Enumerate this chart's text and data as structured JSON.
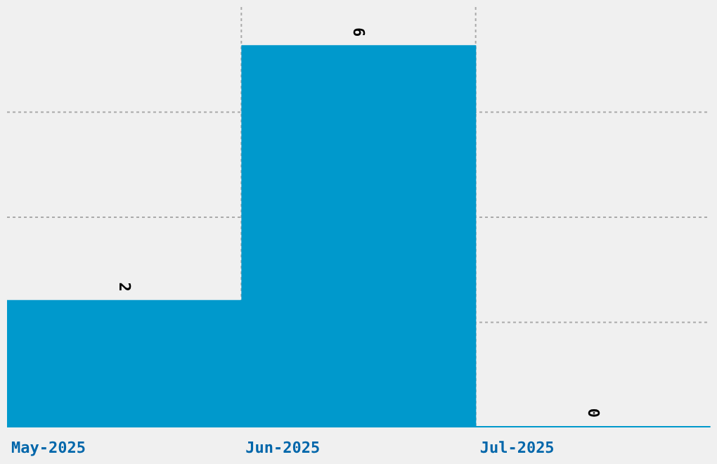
{
  "chart_data": {
    "type": "bar",
    "categories": [
      "May-2025",
      "Jun-2025",
      "Jul-2025"
    ],
    "values": [
      2,
      6,
      0
    ],
    "color": "#0099cc",
    "ylim": [
      0,
      6.6
    ],
    "grid": true,
    "data_labels": true,
    "tick_labels": "x"
  }
}
